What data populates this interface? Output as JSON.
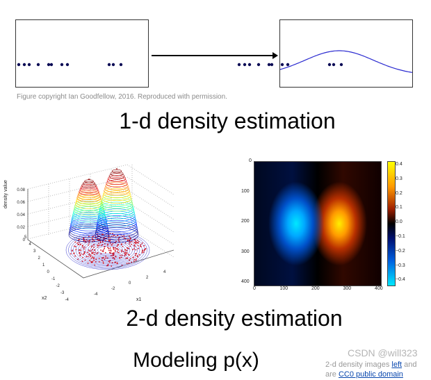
{
  "slide": {
    "caption": "Figure copyright Ian Goodfellow, 2016. Reproduced with permission.",
    "title_1d": "1-d density estimation",
    "title_2d": "2-d density estimation",
    "subtitle": "Modeling p(x)",
    "footer_line1_prefix": "2-d density images ",
    "footer_link_left": "left",
    "footer_line1_suffix": " and",
    "footer_line2_prefix": "are ",
    "footer_link_cc0": "CC0 public domain",
    "watermark": "CSDN @will323"
  },
  "plot3d": {
    "zlabel": "density value",
    "xlabel": "x1",
    "ylabel": "x2",
    "zticks": [
      "0.08",
      "0.06",
      "0.04",
      "0.02",
      "0"
    ],
    "yticks": [
      "5",
      "4",
      "3",
      "2",
      "1",
      "0",
      "-1",
      "-2",
      "-3",
      "-4"
    ],
    "xticks": [
      "-4",
      "-2",
      "0",
      "2",
      "4"
    ]
  },
  "heatmap": {
    "yticks": [
      "0",
      "100",
      "200",
      "300",
      "400"
    ],
    "xticks": [
      "0",
      "100",
      "200",
      "300",
      "400"
    ],
    "colorbar_ticks": [
      "0.4",
      "0.3",
      "0.2",
      "0.1",
      "0.0",
      "−0.1",
      "−0.2",
      "−0.3",
      "−0.4"
    ],
    "colormap_colors": [
      "#00e8ff",
      "#0060e0",
      "#000000",
      "#ff9a00",
      "#ffff00"
    ]
  },
  "colors": {
    "dots": "#0b0b55",
    "curve": "#2a2ad0",
    "link": "#0645ad"
  }
}
